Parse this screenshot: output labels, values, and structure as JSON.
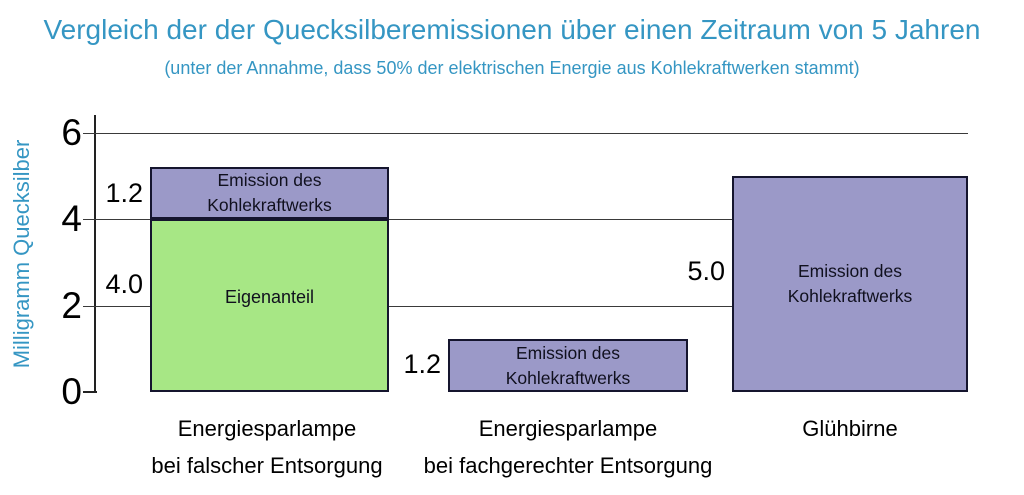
{
  "header": {
    "title": "Vergleich der der Quecksilberemissionen über einen Zeitraum von 5 Jahren",
    "subtitle": "(unter der Annahme, dass 50% der elektrischen Energie aus Kohlekraftwerken stammt)"
  },
  "axis": {
    "ylabel": "Milligramm Quecksilber",
    "ticks": [
      "6",
      "4",
      "2",
      "0"
    ]
  },
  "bars": {
    "bar1": {
      "emission_value": "1.2",
      "emission_line1": "Emission des",
      "emission_line2": "Kohlekraftwerks",
      "own_value": "4.0",
      "own_label": "Eigenanteil"
    },
    "bar2": {
      "emission_value": "1.2",
      "emission_line1": "Emission des",
      "emission_line2": "Kohlekraftwerks"
    },
    "bar3": {
      "emission_value": "5.0",
      "emission_line1": "Emission des",
      "emission_line2": "Kohlekraftwerks"
    }
  },
  "cats": {
    "c1l1": "Energiesparlampe",
    "c1l2": "bei falscher Entsorgung",
    "c2l1": "Energiesparlampe",
    "c2l2": "bei fachgerechter Entsorgung",
    "c3l1": "Glühbirne"
  },
  "colors": {
    "title_teal": "#3596c3",
    "eigenanteil_green": "#a7e785",
    "emission_purple": "#9b99c8",
    "bar_border": "#15152e",
    "gridline": "#3a3a3a",
    "text": "#000000"
  },
  "chart_data": {
    "type": "bar",
    "stacked": true,
    "title": "Vergleich der der Quecksilberemissionen über einen Zeitraum von 5 Jahren",
    "subtitle": "(unter der Annahme, dass 50% der elektrischen Energie aus Kohlekraftwerken stammt)",
    "xlabel": "",
    "ylabel": "Milligramm Quecksilber",
    "ylim": [
      0,
      6
    ],
    "yticks": [
      0,
      2,
      4,
      6
    ],
    "grid": true,
    "legend_position": "none",
    "categories": [
      "Energiesparlampe bei falscher Entsorgung",
      "Energiesparlampe bei fachgerechter Entsorgung",
      "Glühbirne"
    ],
    "series": [
      {
        "name": "Eigenanteil",
        "color": "#a7e785",
        "values": [
          4.0,
          0,
          0
        ]
      },
      {
        "name": "Emission des Kohlekraftwerks",
        "color": "#9b99c8",
        "values": [
          1.2,
          1.2,
          5.0
        ]
      }
    ],
    "totals": [
      5.2,
      1.2,
      5.0
    ],
    "value_annotations": [
      "1.2",
      "4.0",
      "1.2",
      "5.0"
    ]
  }
}
